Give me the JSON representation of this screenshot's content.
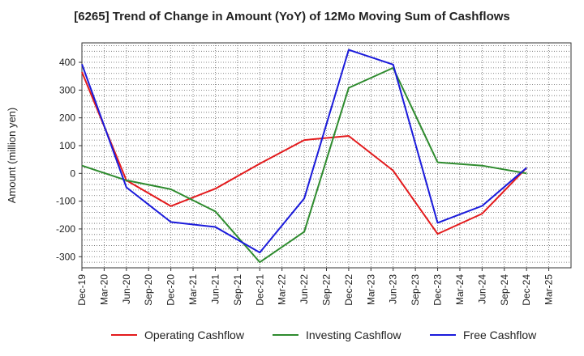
{
  "chart_data": {
    "type": "line",
    "title": "[6265]  Trend of Change in Amount (YoY) of 12Mo Moving Sum of Cashflows",
    "ylabel": "Amount (million yen)",
    "xlabel": "",
    "ylim": [
      -340,
      470
    ],
    "yticks": [
      400,
      300,
      200,
      100,
      0,
      -100,
      -200,
      -300
    ],
    "categories": [
      "Dec-19",
      "Mar-20",
      "Jun-20",
      "Sep-20",
      "Dec-20",
      "Mar-21",
      "Jun-21",
      "Sep-21",
      "Dec-21",
      "Mar-22",
      "Jun-22",
      "Sep-22",
      "Dec-22",
      "Mar-23",
      "Jun-23",
      "Sep-23",
      "Dec-23",
      "Mar-24",
      "Jun-24",
      "Sep-24",
      "Dec-24",
      "Mar-25"
    ],
    "grid": true,
    "legend_position": "bottom",
    "series": [
      {
        "name": "Operating Cashflow",
        "color": "#e31a1c",
        "x": [
          0,
          2,
          4,
          6,
          8,
          10,
          12,
          14,
          16,
          18,
          20
        ],
        "values": [
          365,
          -25,
          -118,
          -55,
          35,
          120,
          135,
          10,
          -218,
          -145,
          20
        ]
      },
      {
        "name": "Investing Cashflow",
        "color": "#2e8b2e",
        "x": [
          0,
          2,
          4,
          6,
          8,
          10,
          12,
          14,
          16,
          18,
          20
        ],
        "values": [
          28,
          -25,
          -57,
          -137,
          -320,
          -210,
          308,
          380,
          40,
          28,
          0
        ]
      },
      {
        "name": "Free Cashflow",
        "color": "#1a1adb",
        "x": [
          0,
          2,
          4,
          6,
          8,
          10,
          12,
          14,
          16,
          18,
          20
        ],
        "values": [
          393,
          -50,
          -175,
          -193,
          -285,
          -90,
          445,
          392,
          -178,
          -117,
          20
        ]
      }
    ]
  }
}
